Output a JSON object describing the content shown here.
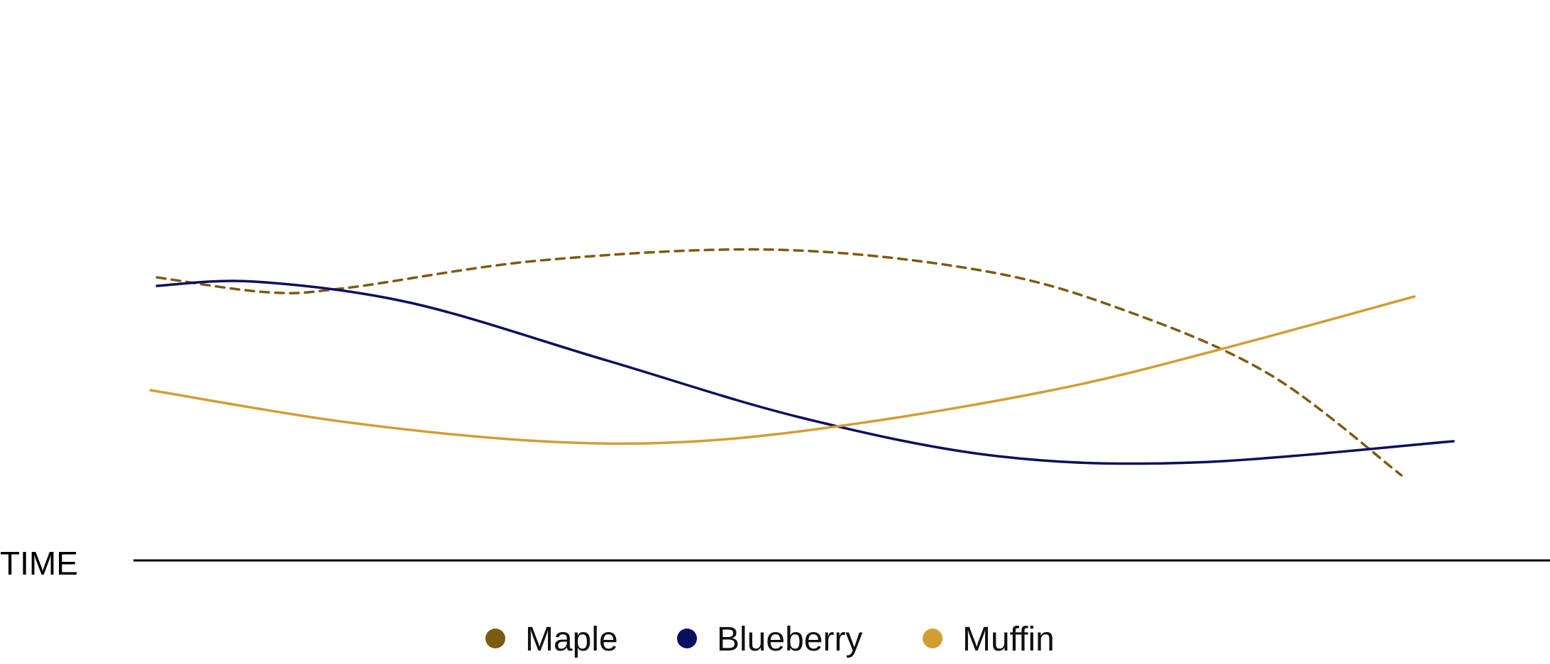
{
  "chart_data": {
    "type": "line",
    "title": "",
    "xlabel": "TIME",
    "ylabel": "",
    "x_ticks_shown": false,
    "y_ticks_shown": false,
    "grid": false,
    "legend_position": "bottom",
    "line_style": "smooth",
    "xlim": [
      0,
      10
    ],
    "ylim": [
      0,
      10
    ],
    "series": [
      {
        "name": "Maple",
        "color": "#7d5a10",
        "dash": "dashed",
        "x": [
          0.05,
          0.9,
          1.5,
          3.0,
          4.8,
          6.4,
          7.5,
          8.6,
          9.6
        ],
        "y": [
          6.15,
          5.8,
          5.9,
          6.55,
          6.8,
          6.3,
          5.35,
          3.85,
          1.5
        ]
      },
      {
        "name": "Blueberry",
        "color": "#0c0f5e",
        "dash": "solid",
        "x": [
          0.05,
          0.8,
          2.0,
          3.5,
          5.0,
          6.5,
          8.0,
          10.0
        ],
        "y": [
          5.95,
          6.05,
          5.55,
          4.2,
          2.85,
          1.95,
          1.8,
          2.3
        ]
      },
      {
        "name": "Muffin",
        "color": "#d19e34",
        "dash": "solid",
        "x": [
          0.0,
          1.5,
          3.0,
          4.2,
          5.5,
          7.0,
          8.2,
          9.7
        ],
        "y": [
          3.5,
          2.75,
          2.3,
          2.3,
          2.75,
          3.55,
          4.45,
          5.7
        ]
      }
    ]
  }
}
